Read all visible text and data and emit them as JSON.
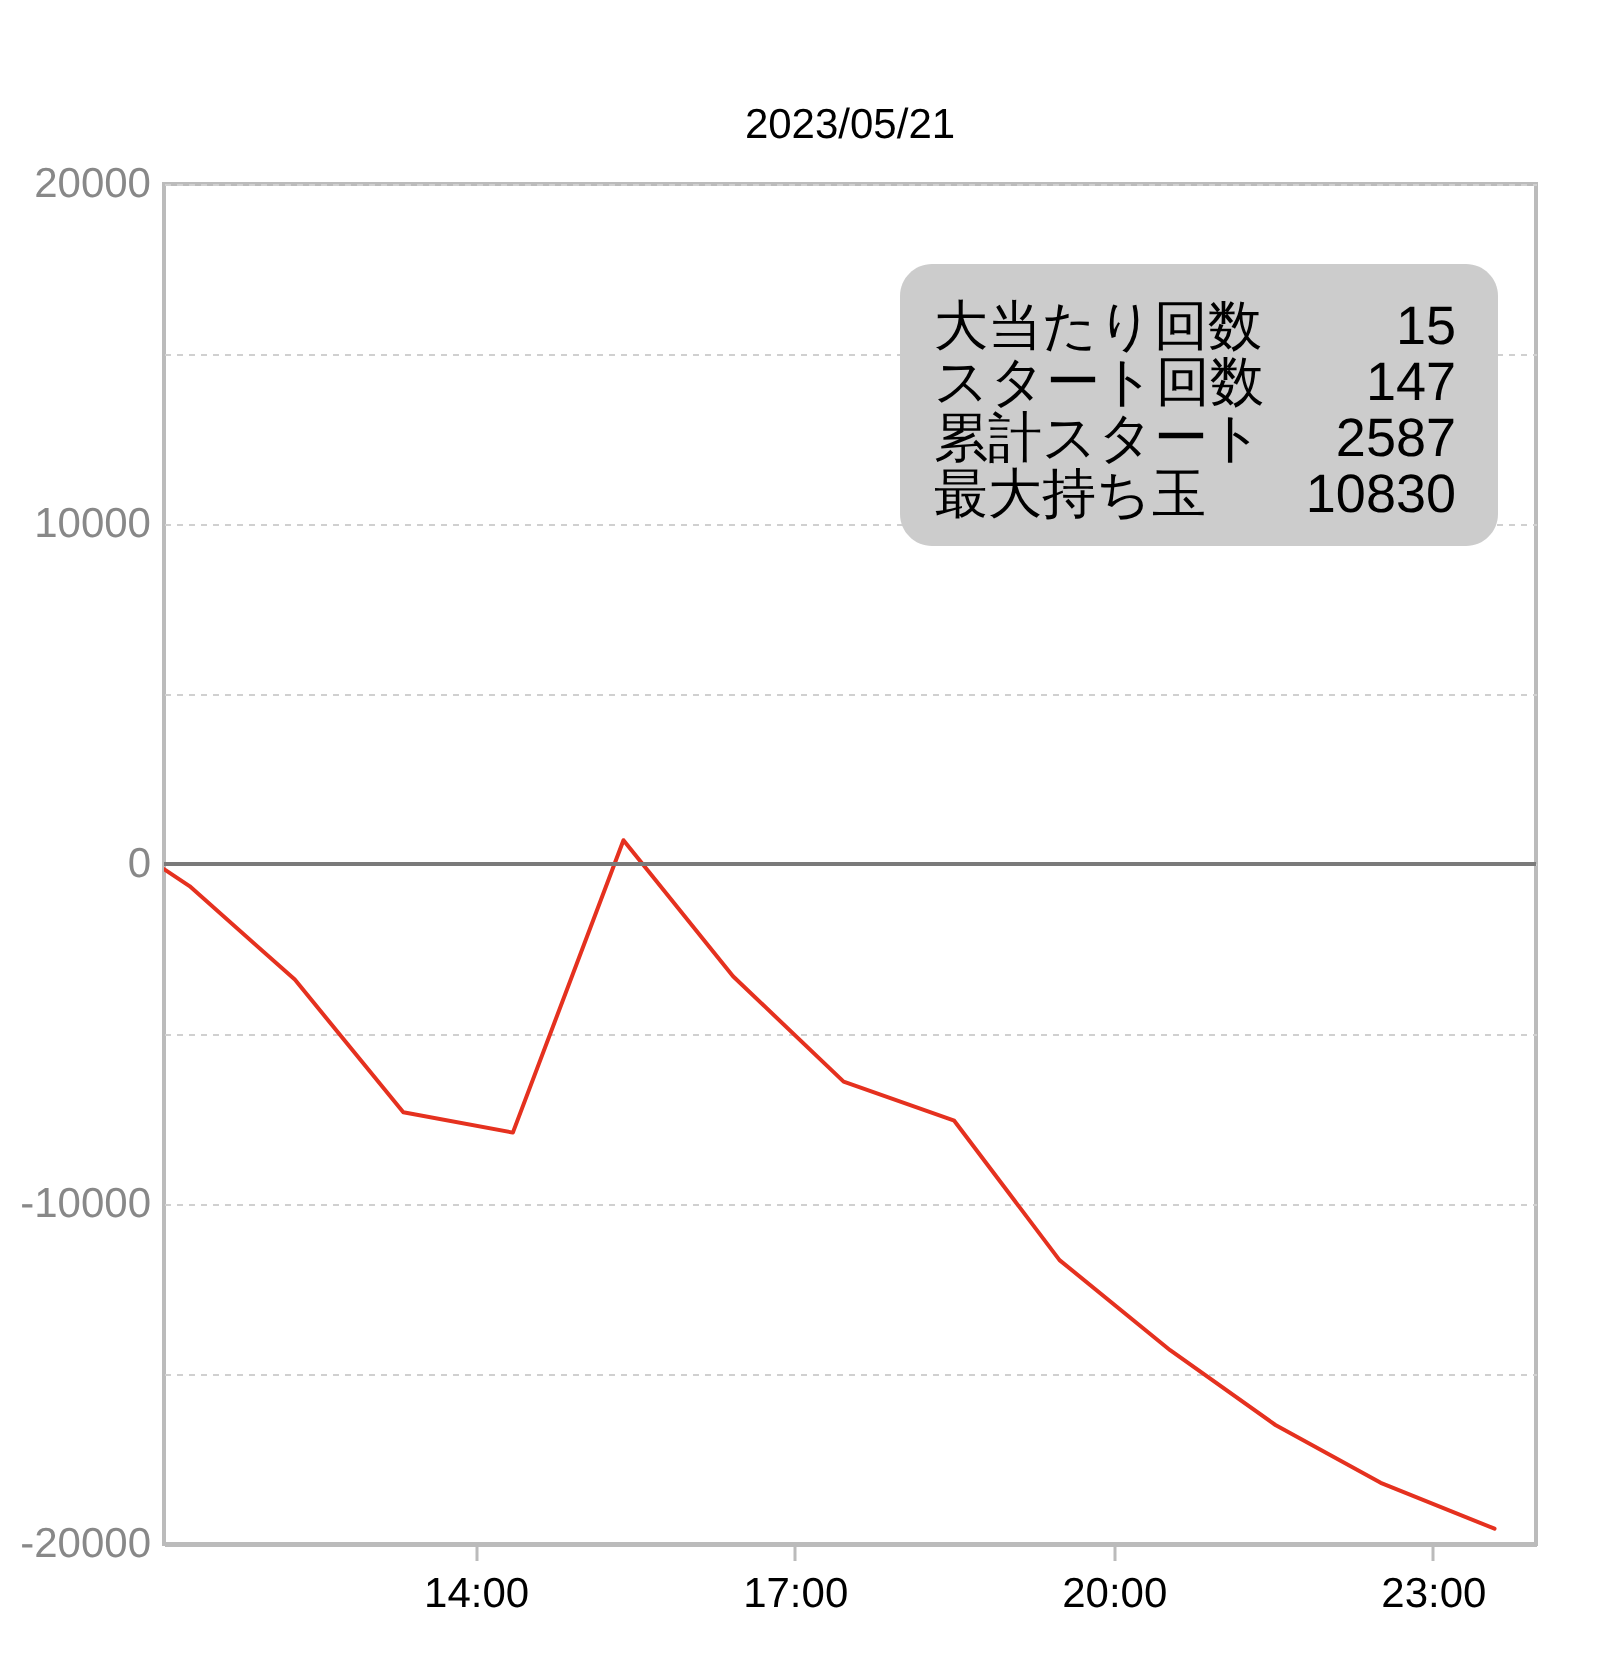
{
  "chart_data": {
    "type": "line",
    "title": "2023/05/21",
    "x": [
      11.07,
      11.31,
      12.3,
      13.32,
      14.35,
      15.39,
      16.42,
      17.46,
      18.5,
      19.49,
      20.53,
      21.52,
      22.51,
      23.58
    ],
    "series": [
      {
        "color": "#e5311f",
        "values": [
          -150,
          -650,
          -3400,
          -7300,
          -7900,
          700,
          -3300,
          -6400,
          -7550,
          -11650,
          -14300,
          -16500,
          -18200,
          -19550
        ]
      }
    ],
    "xlim": [
      11.07,
      23.97
    ],
    "xticks": [
      {
        "value": 14,
        "label": "14:00"
      },
      {
        "value": 17,
        "label": "17:00"
      },
      {
        "value": 20,
        "label": "20:00"
      },
      {
        "value": 23,
        "label": "23:00"
      }
    ],
    "ylim": [
      -20000,
      20000
    ],
    "yticks": [
      20000,
      {
        "value": 15000,
        "label": null
      },
      10000,
      {
        "value": 5000,
        "label": null
      },
      0,
      {
        "value": -5000,
        "label": null
      },
      -10000,
      {
        "value": -15000,
        "label": null
      },
      -20000
    ],
    "grid": "y",
    "ref_lines": [
      {
        "axis": "y",
        "value": 0,
        "color": "#7a7a7a"
      }
    ],
    "annotations": [
      "大当たり回数 15",
      "スタート回数 147",
      "累計スタート 2587",
      "最大持ち玉 10830"
    ]
  }
}
